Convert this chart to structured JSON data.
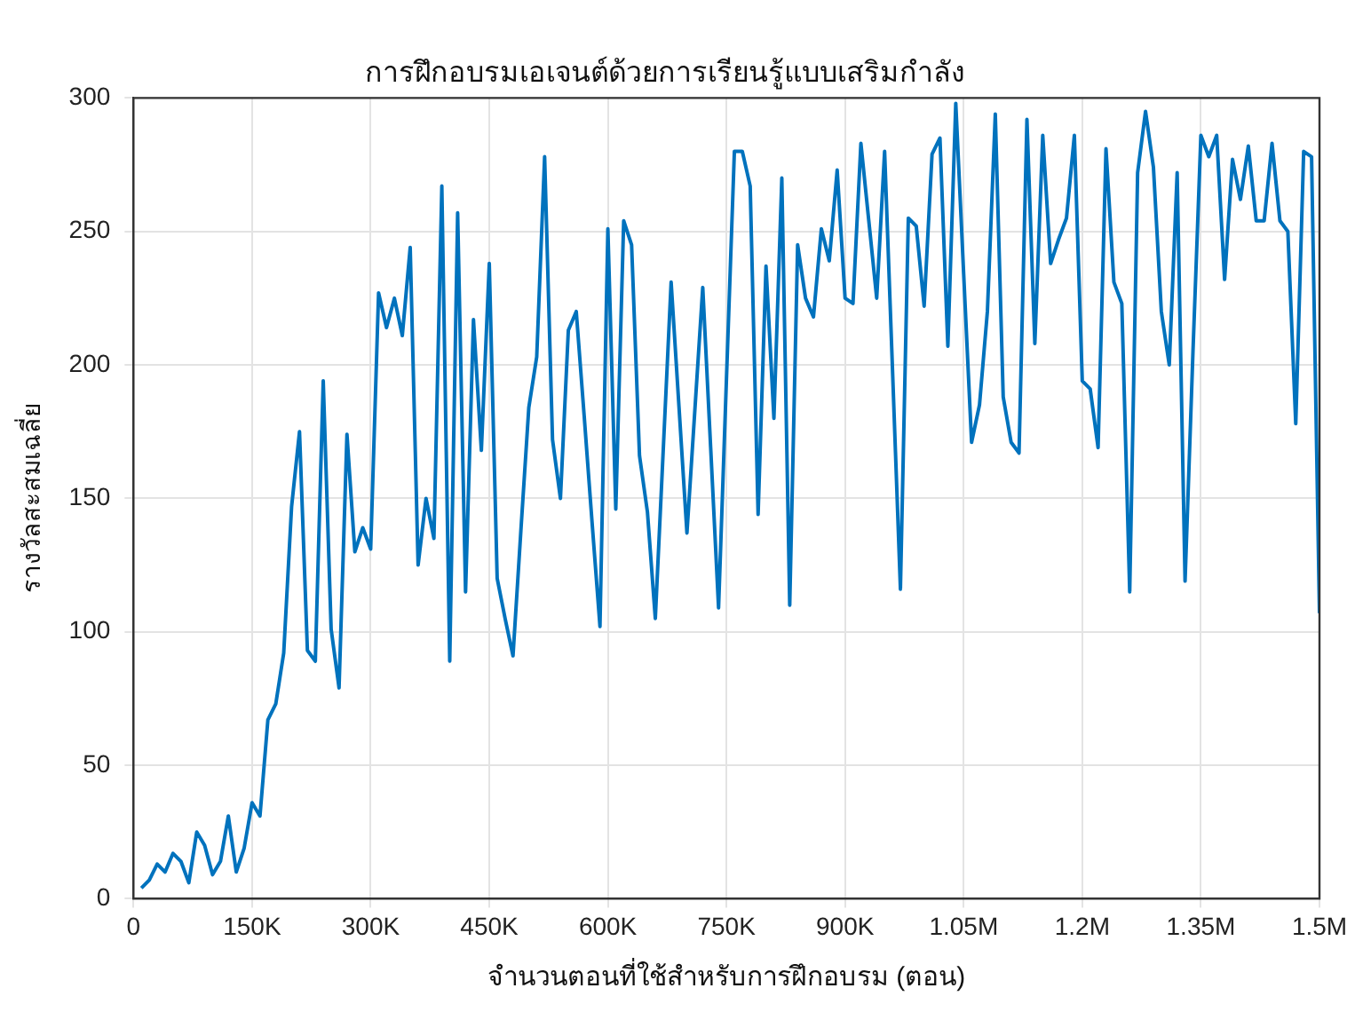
{
  "chart_data": {
    "type": "line",
    "title": "การฝึกอบรมเอเจนต์ด้วยการเรียนรู้แบบเสริมกำลัง",
    "xlabel": "จำนวนตอนที่ใช้สำหรับการฝึกอบรม (ตอน)",
    "ylabel": "รางวัลสะสมเฉลี่ย",
    "x": [
      10000,
      20000,
      30000,
      40000,
      50000,
      60000,
      70000,
      80000,
      90000,
      100000,
      110000,
      120000,
      130000,
      140000,
      150000,
      160000,
      170000,
      180000,
      190000,
      200000,
      210000,
      220000,
      230000,
      240000,
      250000,
      260000,
      270000,
      280000,
      290000,
      300000,
      310000,
      320000,
      330000,
      340000,
      350000,
      360000,
      370000,
      380000,
      390000,
      400000,
      410000,
      420000,
      430000,
      440000,
      450000,
      460000,
      470000,
      480000,
      490000,
      500000,
      510000,
      520000,
      530000,
      540000,
      550000,
      560000,
      570000,
      580000,
      590000,
      600000,
      610000,
      620000,
      630000,
      640000,
      650000,
      660000,
      670000,
      680000,
      690000,
      700000,
      710000,
      720000,
      730000,
      740000,
      750000,
      760000,
      770000,
      780000,
      790000,
      800000,
      810000,
      820000,
      830000,
      840000,
      850000,
      860000,
      870000,
      880000,
      890000,
      900000,
      910000,
      920000,
      930000,
      940000,
      950000,
      960000,
      970000,
      980000,
      990000,
      1000000,
      1010000,
      1020000,
      1030000,
      1040000,
      1050000,
      1060000,
      1070000,
      1080000,
      1090000,
      1100000,
      1110000,
      1120000,
      1130000,
      1140000,
      1150000,
      1160000,
      1170000,
      1180000,
      1190000,
      1200000,
      1210000,
      1220000,
      1230000,
      1240000,
      1250000,
      1260000,
      1270000,
      1280000,
      1290000,
      1300000,
      1310000,
      1320000,
      1330000,
      1340000,
      1350000,
      1360000,
      1370000,
      1380000,
      1390000,
      1400000,
      1410000,
      1420000,
      1430000,
      1440000,
      1450000,
      1460000,
      1470000,
      1480000,
      1490000,
      1500000
    ],
    "series": [
      {
        "color": "#0072bd",
        "values": [
          4,
          7,
          13,
          10,
          17,
          14,
          6,
          25,
          20,
          9,
          14,
          31,
          10,
          19,
          36,
          31,
          67,
          73,
          92,
          147,
          175,
          93,
          89,
          194,
          101,
          79,
          174,
          130,
          139,
          131,
          227,
          214,
          225,
          211,
          244,
          125,
          150,
          135,
          267,
          89,
          257,
          115,
          217,
          168,
          238,
          120,
          105,
          91,
          138,
          184,
          203,
          278,
          172,
          150,
          213,
          220,
          181,
          141,
          102,
          251,
          146,
          254,
          245,
          166,
          145,
          105,
          168,
          231,
          184,
          137,
          183,
          229,
          169,
          109,
          195,
          280,
          280,
          267,
          144,
          237,
          180,
          270,
          110,
          245,
          225,
          218,
          251,
          239,
          273,
          225,
          223,
          283,
          254,
          225,
          280,
          198,
          116,
          255,
          252,
          222,
          279,
          285,
          207,
          298,
          234,
          171,
          185,
          220,
          294,
          188,
          171,
          167,
          292,
          208,
          286,
          238,
          247,
          255,
          286,
          194,
          191,
          169,
          281,
          231,
          223,
          115,
          272,
          295,
          274,
          220,
          200,
          272,
          119,
          205,
          286,
          278,
          286,
          232,
          277,
          262,
          282,
          254,
          254,
          283,
          254,
          250,
          178,
          280,
          278,
          107
        ]
      }
    ],
    "xlim": [
      0,
      1500000
    ],
    "ylim": [
      0,
      300
    ],
    "xticks": [
      0,
      {
        "value": 150000,
        "label": "150K"
      },
      {
        "value": 300000,
        "label": "300K"
      },
      {
        "value": 450000,
        "label": "450K"
      },
      {
        "value": 600000,
        "label": "600K"
      },
      {
        "value": 750000,
        "label": "750K"
      },
      {
        "value": 900000,
        "label": "900K"
      },
      {
        "value": 1050000,
        "label": "1.05M"
      },
      {
        "value": 1200000,
        "label": "1.2M"
      },
      {
        "value": 1350000,
        "label": "1.35M"
      },
      {
        "value": 1500000,
        "label": "1.5M"
      }
    ],
    "yticks": [
      0,
      50,
      100,
      150,
      200,
      250,
      300
    ],
    "grid": true
  }
}
